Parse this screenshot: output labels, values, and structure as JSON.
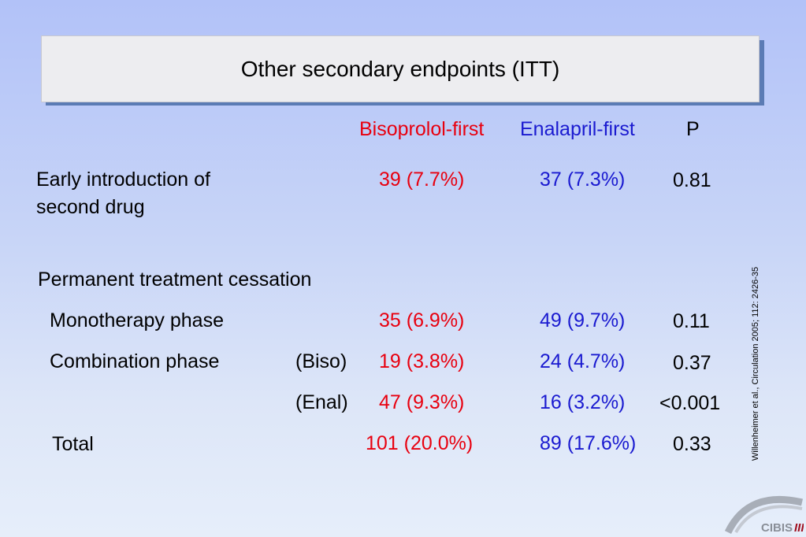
{
  "title": "Other secondary endpoints (ITT)",
  "headers": {
    "biso": "Bisoprolol-first",
    "enal": "Enalapril-first",
    "p": "P"
  },
  "rows": {
    "early": {
      "label_line1": "Early introduction of",
      "label_line2": "second drug",
      "biso": "39 (7.7%)",
      "enal": "37 (7.3%)",
      "p": "0.81"
    },
    "cessation": {
      "label": "Permanent treatment cessation"
    },
    "mono": {
      "label": "Monotherapy phase",
      "biso": "35 (6.9%)",
      "enal": "49 (9.7%)",
      "p": "0.11"
    },
    "combo_biso": {
      "label": "Combination phase",
      "sub": "(Biso)",
      "biso": "19 (3.8%)",
      "enal": "24 (4.7%)",
      "p": "0.37"
    },
    "combo_enal": {
      "sub": "(Enal)",
      "biso": "47 (9.3%)",
      "enal": "16 (3.2%)",
      "p": "<0.001"
    },
    "total": {
      "label": "Total",
      "biso": "101 (20.0%)",
      "enal": "89 (17.6%)",
      "p": "0.33"
    }
  },
  "citation": "Willenheimer et al., Circulation 2005; 112: 2426-35",
  "logo": {
    "text": "CIBIS III",
    "colors": {
      "arc": "#9aa0aa",
      "text": "#a01020"
    }
  },
  "colors": {
    "biso": "#e8000f",
    "enal": "#1a1ad0",
    "title_shadow": "#5b7bb4"
  }
}
